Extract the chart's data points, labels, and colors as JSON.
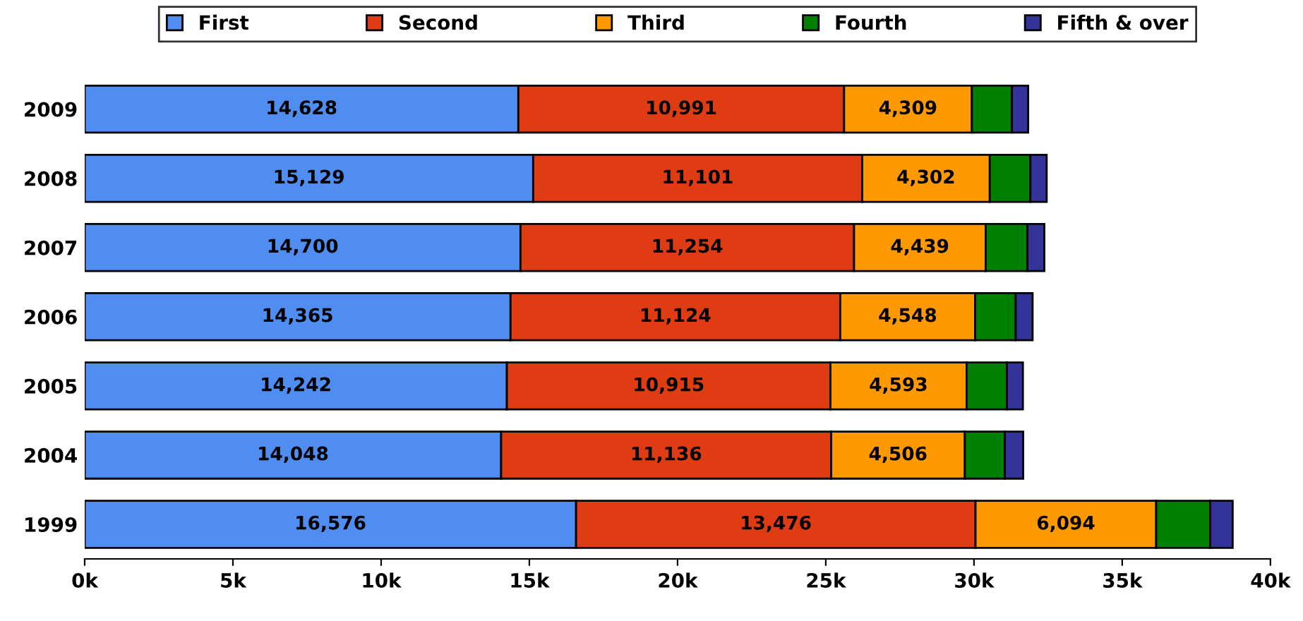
{
  "chart_data": {
    "type": "bar",
    "orientation": "horizontal",
    "stacked": true,
    "categories": [
      "2009",
      "2008",
      "2007",
      "2006",
      "2005",
      "2004",
      "1999"
    ],
    "series": [
      {
        "name": "First",
        "color": "#4f8ef0",
        "values": [
          14628,
          15129,
          14700,
          14365,
          14242,
          14048,
          16576
        ],
        "value_labels": [
          "14,628",
          "15,129",
          "14,700",
          "14,365",
          "14,242",
          "14,048",
          "16,576"
        ]
      },
      {
        "name": "Second",
        "color": "#e03c14",
        "values": [
          10991,
          11101,
          11254,
          11124,
          10915,
          11136,
          13476
        ],
        "value_labels": [
          "10,991",
          "11,101",
          "11,254",
          "11,124",
          "10,915",
          "11,136",
          "13,476"
        ]
      },
      {
        "name": "Third",
        "color": "#ff9900",
        "values": [
          4309,
          4302,
          4439,
          4548,
          4593,
          4506,
          6094
        ],
        "value_labels": [
          "4,309",
          "4,302",
          "4,439",
          "4,548",
          "4,593",
          "4,506",
          "6,094"
        ]
      },
      {
        "name": "Fourth",
        "color": "#008000",
        "values": [
          1350,
          1370,
          1410,
          1370,
          1360,
          1350,
          1820
        ]
      },
      {
        "name": "Fifth & over",
        "color": "#333399",
        "values": [
          550,
          550,
          570,
          570,
          540,
          620,
          760
        ]
      }
    ],
    "xlim": [
      0,
      40000
    ],
    "xticks": [
      {
        "value": 0,
        "label": "0k"
      },
      {
        "value": 5000,
        "label": "5k"
      },
      {
        "value": 10000,
        "label": "10k"
      },
      {
        "value": 15000,
        "label": "15k"
      },
      {
        "value": 20000,
        "label": "20k"
      },
      {
        "value": 25000,
        "label": "25k"
      },
      {
        "value": 30000,
        "label": "30k"
      },
      {
        "value": 35000,
        "label": "35k"
      },
      {
        "value": 40000,
        "label": "40k"
      }
    ],
    "legend": "top",
    "grid": false
  }
}
